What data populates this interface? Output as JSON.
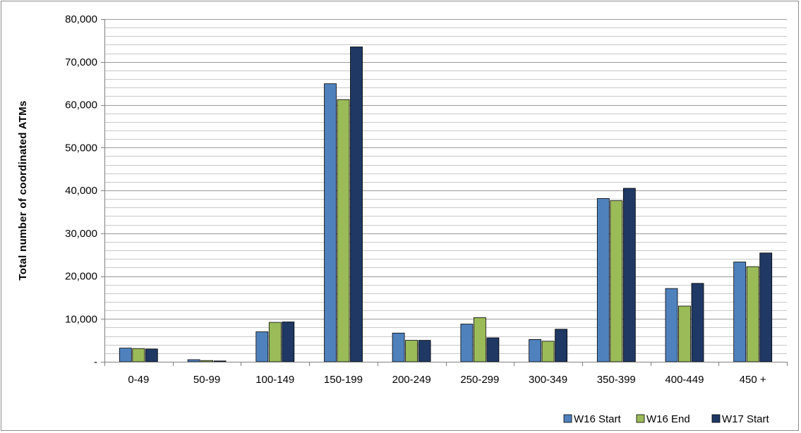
{
  "chart_data": {
    "type": "bar",
    "title": "",
    "xlabel": "",
    "ylabel": "Total number of coordinated ATMs",
    "ylim": [
      0,
      80000
    ],
    "ytick_step": 10000,
    "ytick_labels": [
      "-",
      "10,000",
      "20,000",
      "30,000",
      "40,000",
      "50,000",
      "60,000",
      "70,000",
      "80,000"
    ],
    "minor_grid_step": 2000,
    "grid": true,
    "legend_position": "bottom-right",
    "categories": [
      "0-49",
      "50-99",
      "100-149",
      "150-199",
      "200-249",
      "250-299",
      "300-349",
      "350-399",
      "400-449",
      "450 +"
    ],
    "series": [
      {
        "name": "W16 Start",
        "color": "#4f81bd",
        "values": [
          3200,
          500,
          7000,
          64900,
          6700,
          8800,
          5200,
          38100,
          17100,
          23300
        ]
      },
      {
        "name": "W16 End",
        "color": "#9bbb59",
        "values": [
          3100,
          300,
          9200,
          61200,
          5000,
          10300,
          4800,
          37600,
          13000,
          22200
        ]
      },
      {
        "name": "W17 Start",
        "color": "#1f3864",
        "values": [
          3000,
          200,
          9300,
          73500,
          5000,
          5600,
          7600,
          40500,
          18300,
          25400
        ]
      }
    ]
  }
}
